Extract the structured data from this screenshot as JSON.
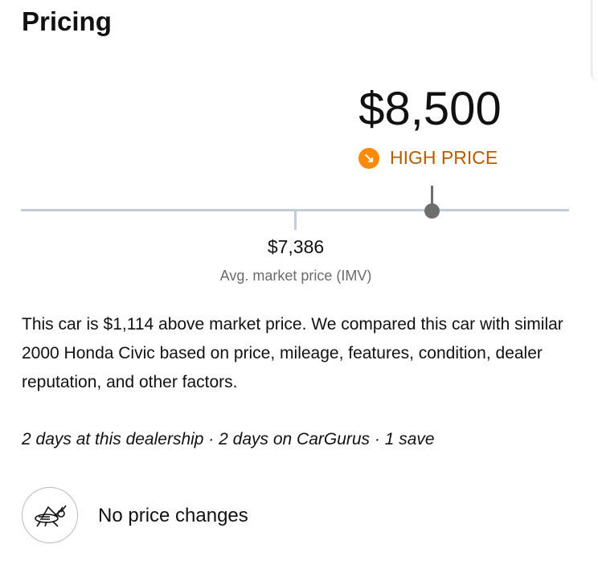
{
  "title": "Pricing",
  "price": "$8,500",
  "rating": {
    "label": "HIGH PRICE",
    "icon": "arrow-down-right-icon",
    "color": "#b85c00",
    "icon_color": "#ff8a00"
  },
  "market": {
    "avg_price": "$7,386",
    "avg_label": "Avg. market price (IMV)"
  },
  "description": "This car is $1,114 above market price. We compared this car with similar 2000 Honda Civic based on price, mileage, features, condition, dealer reputation, and other factors.",
  "stats": "2 days at this dealership · 2 days on CarGurus · 1 save",
  "price_history": {
    "icon": "grasshopper-icon",
    "text": "No price changes"
  }
}
